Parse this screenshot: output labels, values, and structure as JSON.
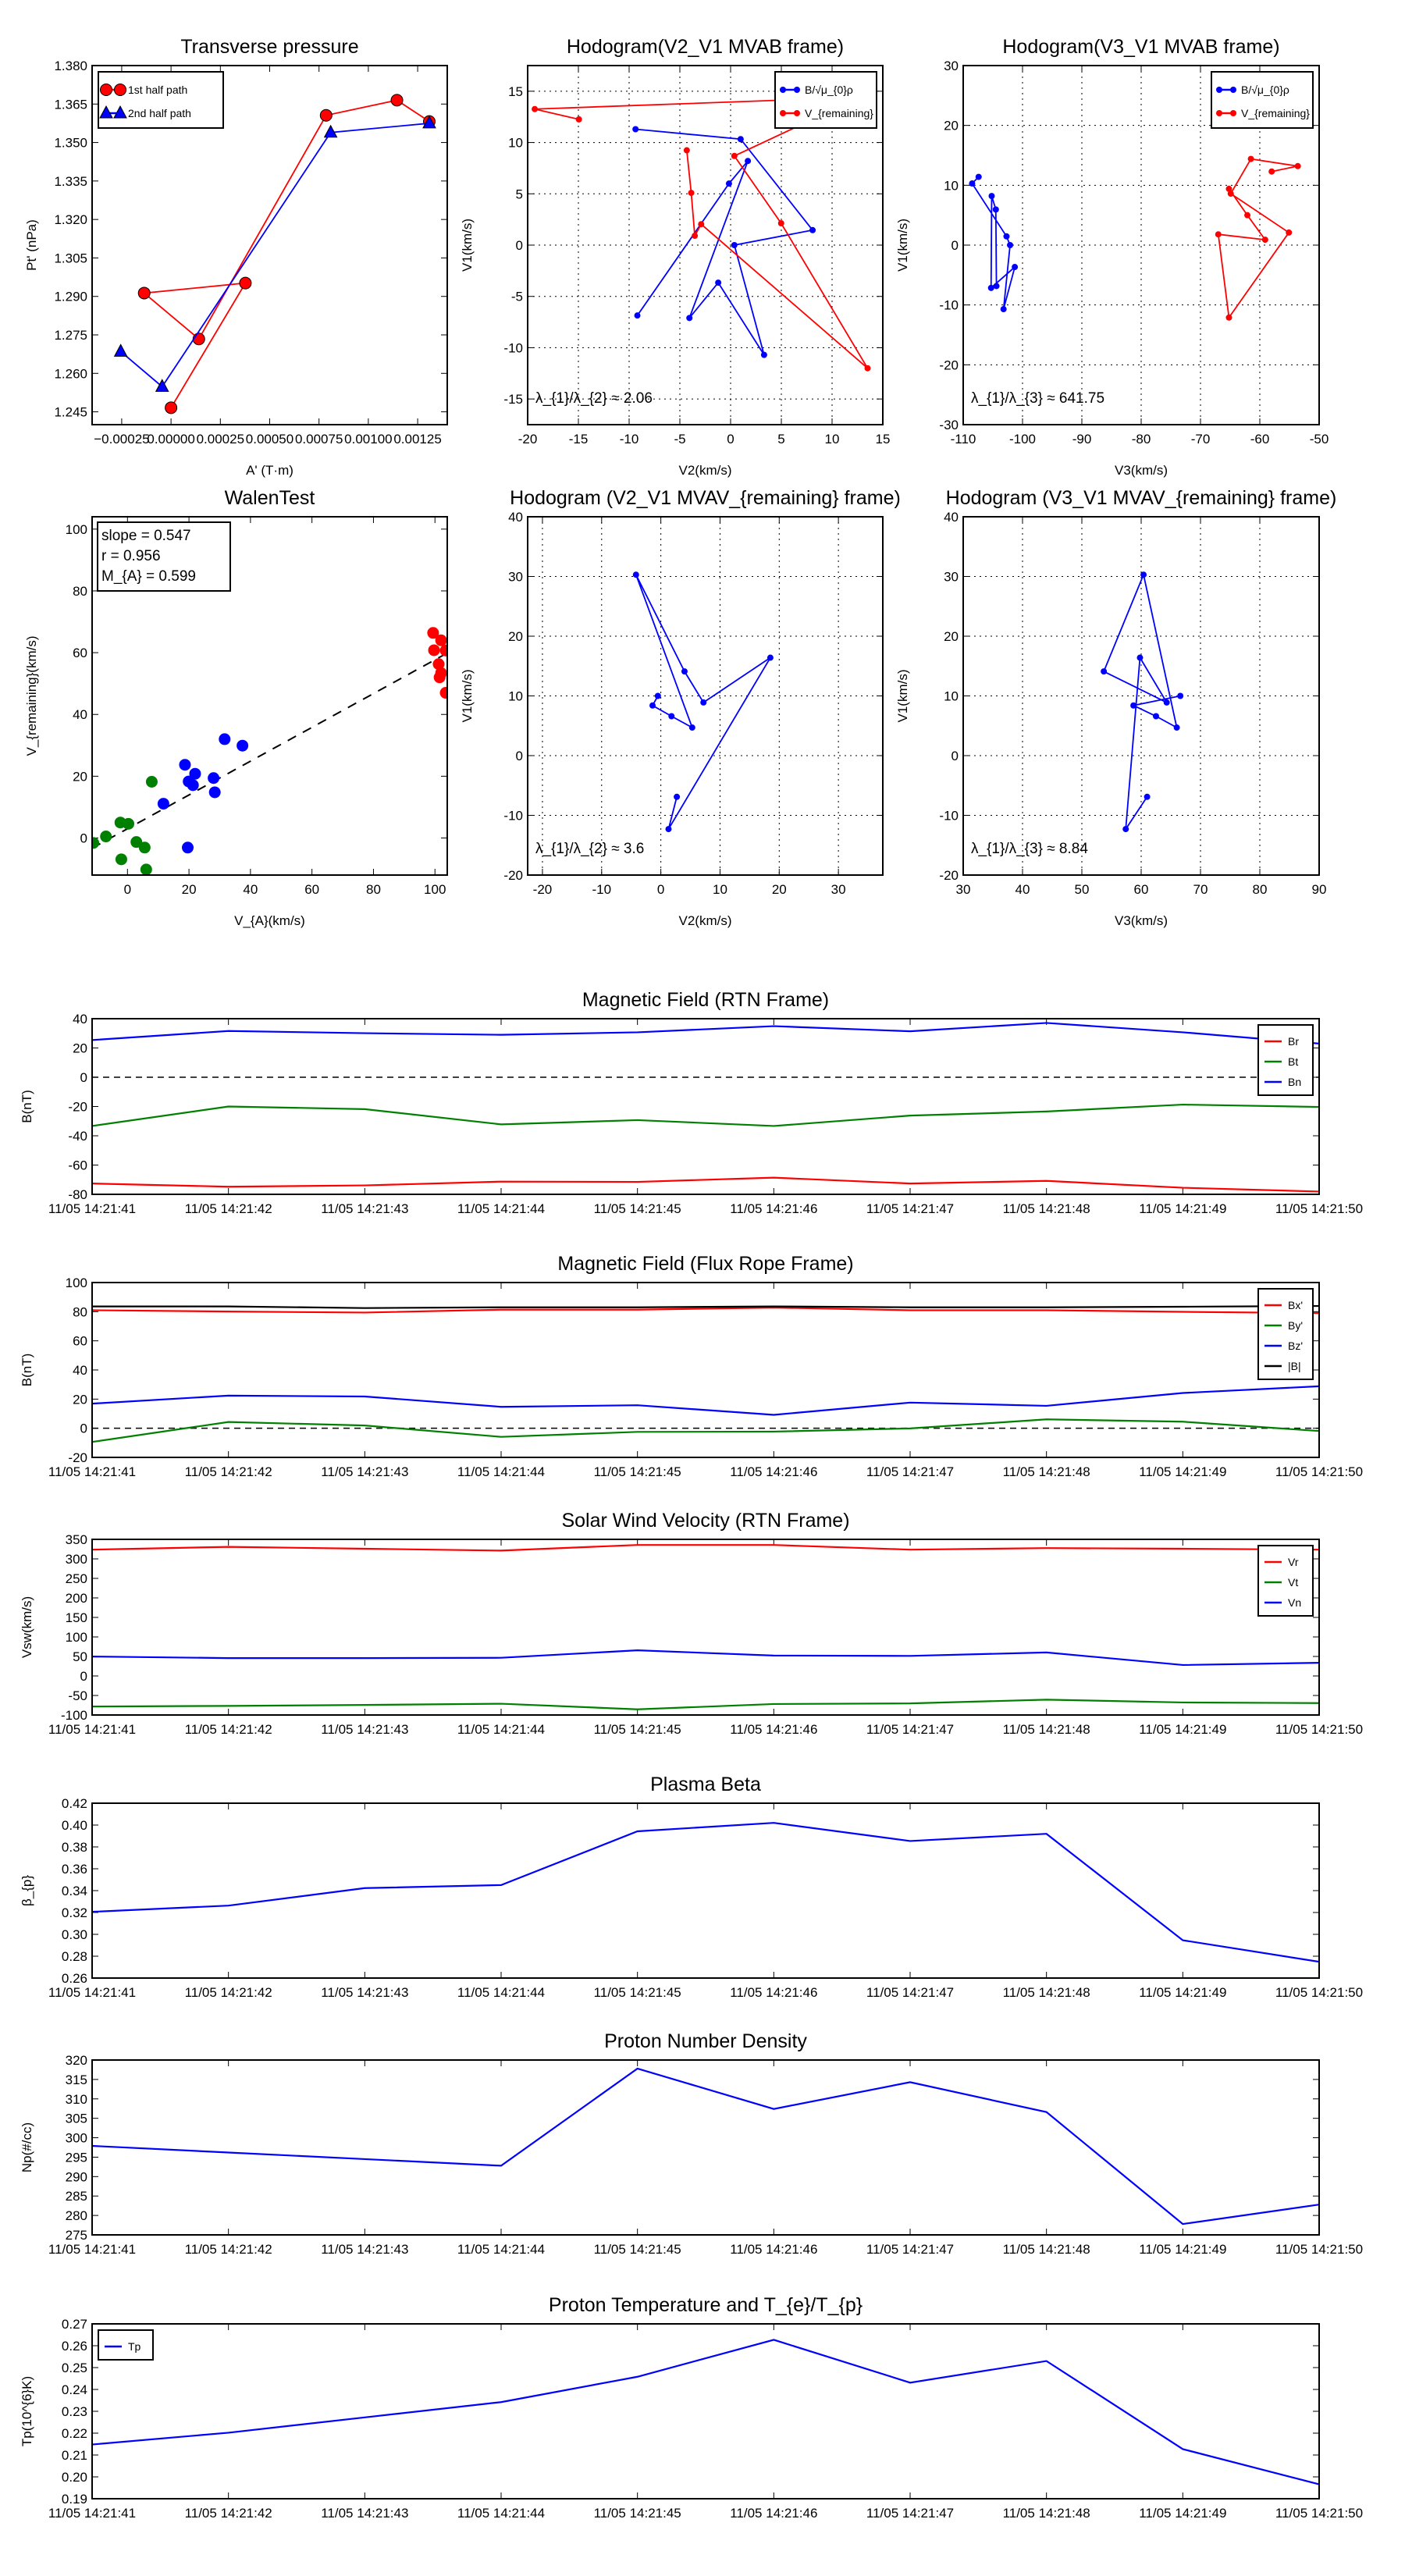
{
  "chart_data": [
    {
      "id": "transverse-pressure",
      "type": "line",
      "title": "Transverse pressure",
      "xlabel": "A' (T·m)",
      "ylabel": "Pt' (nPa)",
      "xlim": [
        -0.0004,
        0.0014
      ],
      "ylim": [
        1.24,
        1.38
      ],
      "grid": false,
      "xticks": [
        -0.00025,
        0,
        0.00025,
        0.0005,
        0.00075,
        0.001,
        0.00125
      ],
      "xticklabels": [
        "−0.00025",
        "0.00000",
        "0.00025",
        "0.00050",
        "0.00075",
        "0.00100",
        "0.00125"
      ],
      "yticks": [
        1.245,
        1.26,
        1.275,
        1.29,
        1.305,
        1.32,
        1.335,
        1.35,
        1.365,
        1.38
      ],
      "yticklabels": [
        "1.245",
        "1.260",
        "1.275",
        "1.290",
        "1.305",
        "1.320",
        "1.335",
        "1.350",
        "1.365",
        "1.380"
      ],
      "legend": "upper-left",
      "series": [
        {
          "name": "1st half path",
          "color": "#ff0000",
          "marker": "circle",
          "points": [
            [
              0,
              1.2466
            ],
            [
              0.000377,
              1.2952
            ],
            [
              -0.000136,
              1.2913
            ],
            [
              0.000141,
              1.2734
            ],
            [
              0.000786,
              1.3606
            ],
            [
              0.001145,
              1.3665
            ],
            [
              0.001309,
              1.3582
            ]
          ]
        },
        {
          "name": "2nd half path",
          "color": "#0000ff",
          "marker": "triangle",
          "points": [
            [
              -0.000255,
              1.2685
            ],
            [
              -4.5e-05,
              1.2548
            ],
            [
              0.000809,
              1.3539
            ],
            [
              0.001309,
              1.3575
            ]
          ]
        }
      ]
    },
    {
      "id": "hodogram-v2-v1-mvab",
      "type": "line",
      "title": "Hodogram(V2_V1 MVAB frame)",
      "xlabel": "V2(km/s)",
      "ylabel": "V1(km/s)",
      "xlim": [
        -20,
        15
      ],
      "ylim": [
        -17.5,
        17.5
      ],
      "grid": true,
      "xticks": [
        -20,
        -15,
        -10,
        -5,
        0,
        5,
        10,
        15
      ],
      "yticks": [
        -15,
        -10,
        -5,
        0,
        5,
        10,
        15
      ],
      "legend": "upper-right",
      "annotation": "λ_{1}/λ_{2} ≈ 2.06",
      "series": [
        {
          "name": "B/√μ_{0}ρ",
          "color": "#0000ff",
          "marker": "dot",
          "points": [
            [
              -9.19,
              -6.86
            ],
            [
              -0.16,
              6.0
            ],
            [
              1.7,
              8.2
            ],
            [
              -4.06,
              -7.1
            ],
            [
              -1.22,
              -3.66
            ],
            [
              3.3,
              -10.7
            ],
            [
              0.37,
              0
            ],
            [
              8.08,
              1.46
            ],
            [
              0.99,
              10.33
            ],
            [
              -9.37,
              11.3
            ]
          ]
        },
        {
          "name": "V_{remaining}",
          "color": "#ff0000",
          "marker": "dot",
          "points": [
            [
              -14.95,
              12.26
            ],
            [
              -19.3,
              13.26
            ],
            [
              12.7,
              14.4
            ],
            [
              0.37,
              8.69
            ],
            [
              4.98,
              2.13
            ],
            [
              13.5,
              -12.0
            ],
            [
              -2.9,
              2.04
            ],
            [
              -3.53,
              0.91
            ],
            [
              -3.88,
              5.09
            ],
            [
              -4.32,
              9.24
            ]
          ]
        }
      ]
    },
    {
      "id": "hodogram-v3-v1-mvab",
      "type": "line",
      "title": "Hodogram(V3_V1 MVAB frame)",
      "xlabel": "V3(km/s)",
      "ylabel": "V1(km/s)",
      "xlim": [
        -110,
        -50
      ],
      "ylim": [
        -30,
        30
      ],
      "grid": true,
      "xticks": [
        -110,
        -100,
        -90,
        -80,
        -70,
        -60,
        -50
      ],
      "yticks": [
        -30,
        -20,
        -10,
        0,
        10,
        20,
        30
      ],
      "legend": "upper-right",
      "annotation": "λ_{1}/λ_{3} ≈ 641.75",
      "series": [
        {
          "name": "B/√μ_{0}ρ",
          "color": "#0000ff",
          "marker": "dot",
          "points": [
            [
              -104.4,
              -6.84
            ],
            [
              -104.5,
              5.95
            ],
            [
              -105.2,
              8.2
            ],
            [
              -105.3,
              -7.15
            ],
            [
              -101.3,
              -3.66
            ],
            [
              -103.2,
              -10.7
            ],
            [
              -102.1,
              0
            ],
            [
              -102.7,
              1.46
            ],
            [
              -108.5,
              10.3
            ],
            [
              -107.4,
              11.4
            ]
          ]
        },
        {
          "name": "V_{remaining}",
          "color": "#ff0000",
          "marker": "dot",
          "points": [
            [
              -58.0,
              12.3
            ],
            [
              -53.6,
              13.2
            ],
            [
              -61.5,
              14.4
            ],
            [
              -64.9,
              8.6
            ],
            [
              -55.1,
              2.1
            ],
            [
              -65.2,
              -12.1
            ],
            [
              -67.0,
              1.8
            ],
            [
              -59.1,
              0.9
            ],
            [
              -62.1,
              5.0
            ],
            [
              -65.2,
              9.4
            ]
          ]
        }
      ]
    },
    {
      "id": "walen-test",
      "type": "scatter",
      "title": "WalenTest",
      "xlabel": "V_{A}(km/s)",
      "ylabel": "V_{remaining}(km/s)",
      "xlim": [
        -11.5,
        104
      ],
      "ylim": [
        -12,
        104
      ],
      "grid": false,
      "xticks": [
        0,
        20,
        40,
        60,
        80,
        100
      ],
      "yticks": [
        0,
        20,
        40,
        60,
        80,
        100
      ],
      "fit": {
        "slope": 0.547,
        "intercept": 3.0
      },
      "stats": [
        "slope = 0.547",
        "r = 0.956",
        "M_{A} = 0.599"
      ],
      "series": [
        {
          "name": "green",
          "color": "#008000",
          "marker": "big",
          "points": [
            [
              -7,
              0.5
            ],
            [
              -2.3,
              5.0
            ],
            [
              0.3,
              4.6
            ],
            [
              7.9,
              18.2
            ],
            [
              2.9,
              -1.3
            ],
            [
              5.6,
              -3.1
            ],
            [
              -2,
              -6.9
            ],
            [
              6.1,
              -10.2
            ],
            [
              -11.1,
              -1.6
            ]
          ]
        },
        {
          "name": "blue",
          "color": "#0000ff",
          "marker": "big",
          "points": [
            [
              18.7,
              23.7
            ],
            [
              22,
              20.8
            ],
            [
              19.9,
              18.3
            ],
            [
              21.3,
              17.1
            ],
            [
              28,
              19.4
            ],
            [
              28.4,
              14.8
            ],
            [
              11.7,
              11.1
            ],
            [
              31.6,
              32
            ],
            [
              37.4,
              29.9
            ],
            [
              19.6,
              -3.1
            ]
          ]
        },
        {
          "name": "red",
          "color": "#ff0000",
          "marker": "big",
          "points": [
            [
              99.4,
              66.4
            ],
            [
              102,
              64
            ],
            [
              99.7,
              60.8
            ],
            [
              103.5,
              60.7
            ],
            [
              101.2,
              56.3
            ],
            [
              102,
              53.4
            ],
            [
              101.5,
              52
            ],
            [
              103.5,
              47
            ]
          ]
        }
      ]
    },
    {
      "id": "hodogram-v2-v1-mvav",
      "type": "line",
      "title": "Hodogram (V2_V1 MVAV_{remaining} frame)",
      "xlabel": "V2(km/s)",
      "ylabel": "V1(km/s)",
      "xlim": [
        -22.5,
        37.5
      ],
      "ylim": [
        -20,
        40
      ],
      "grid": true,
      "xticks": [
        -20,
        -10,
        0,
        10,
        20,
        30
      ],
      "yticks": [
        -20,
        -10,
        0,
        10,
        20,
        30,
        40
      ],
      "annotation": "λ_{1}/λ_{2} ≈ 3.6",
      "series": [
        {
          "name": "B",
          "color": "#0000ff",
          "marker": "dot",
          "points": [
            [
              -0.5,
              10.0
            ],
            [
              -1.4,
              8.4
            ],
            [
              1.8,
              6.6
            ],
            [
              5.3,
              4.7
            ],
            [
              -4.2,
              30.3
            ],
            [
              4.0,
              14.1
            ],
            [
              7.2,
              8.9
            ],
            [
              18.5,
              16.4
            ],
            [
              1.3,
              -12.3
            ],
            [
              2.7,
              -6.9
            ]
          ]
        }
      ]
    },
    {
      "id": "hodogram-v3-v1-mvav",
      "type": "line",
      "title": "Hodogram (V3_V1 MVAV_{remaining} frame)",
      "xlabel": "V3(km/s)",
      "ylabel": "V1(km/s)",
      "xlim": [
        30,
        90
      ],
      "ylim": [
        -20,
        40
      ],
      "grid": true,
      "xticks": [
        30,
        40,
        50,
        60,
        70,
        80,
        90
      ],
      "yticks": [
        -20,
        -10,
        0,
        10,
        20,
        30,
        40
      ],
      "annotation": "λ_{1}/λ_{3} ≈ 8.84",
      "series": [
        {
          "name": "B",
          "color": "#0000ff",
          "marker": "dot",
          "points": [
            [
              66.6,
              10.0
            ],
            [
              58.7,
              8.4
            ],
            [
              62.5,
              6.6
            ],
            [
              66.0,
              4.7
            ],
            [
              60.4,
              30.3
            ],
            [
              53.7,
              14.1
            ],
            [
              64.3,
              8.9
            ],
            [
              59.8,
              16.4
            ],
            [
              57.4,
              -12.3
            ],
            [
              61.0,
              -6.9
            ]
          ]
        }
      ]
    },
    {
      "id": "magnetic-field-rtn",
      "type": "line",
      "timeseries": true,
      "title": "Magnetic Field (RTN Frame)",
      "xlabel": "",
      "ylabel": "B(nT)",
      "ylim": [
        -80,
        40
      ],
      "yticks": [
        -80,
        -60,
        -40,
        -20,
        0,
        20,
        40
      ],
      "zero_line": true,
      "legend": "upper-right",
      "series": [
        {
          "name": "Br",
          "color": "#ff0000",
          "values": [
            -72.6,
            -74.8,
            -73.9,
            -71.3,
            -71.5,
            -68.6,
            -72.6,
            -70.8,
            -75.5,
            -78.1
          ]
        },
        {
          "name": "Bt",
          "color": "#008000",
          "values": [
            -33.3,
            -20.0,
            -21.8,
            -32.2,
            -29.3,
            -33.3,
            -26.2,
            -23.4,
            -18.7,
            -20.3
          ]
        },
        {
          "name": "Bn",
          "color": "#0000ff",
          "values": [
            25.4,
            31.6,
            30.1,
            29.0,
            30.7,
            34.9,
            31.4,
            37.1,
            30.7,
            23.0
          ]
        }
      ]
    },
    {
      "id": "magnetic-field-flux-rope",
      "type": "line",
      "timeseries": true,
      "title": "Magnetic Field (Flux Rope Frame)",
      "xlabel": "",
      "ylabel": "B(nT)",
      "ylim": [
        -20,
        100
      ],
      "yticks": [
        -20,
        0,
        20,
        40,
        60,
        80,
        100
      ],
      "zero_line": true,
      "legend": "upper-right",
      "series": [
        {
          "name": "Bx'",
          "color": "#ff0000",
          "values": [
            81.0,
            80.1,
            79.4,
            81.4,
            81.4,
            82.8,
            81.0,
            81.0,
            79.9,
            79.0
          ]
        },
        {
          "name": "By'",
          "color": "#008000",
          "values": [
            -9.4,
            4.3,
            1.9,
            -5.9,
            -2.5,
            -2.3,
            -0.1,
            6.1,
            4.5,
            -1.9
          ]
        },
        {
          "name": "Bz'",
          "color": "#0000ff",
          "values": [
            16.9,
            22.4,
            21.8,
            14.7,
            15.8,
            9.2,
            17.6,
            15.4,
            24.2,
            28.8
          ]
        },
        {
          "name": "|B|",
          "color": "#000000",
          "values": [
            83.6,
            83.6,
            82.5,
            83.0,
            83.0,
            83.6,
            83.0,
            83.0,
            83.4,
            83.9
          ]
        }
      ]
    },
    {
      "id": "solar-wind-velocity",
      "type": "line",
      "timeseries": true,
      "title": "Solar Wind Velocity (RTN Frame)",
      "xlabel": "",
      "ylabel": "Vsw(km/s)",
      "ylim": [
        -100,
        350
      ],
      "yticks": [
        -100,
        -50,
        0,
        50,
        100,
        150,
        200,
        250,
        300,
        350
      ],
      "legend": "upper-right",
      "series": [
        {
          "name": "Vr",
          "color": "#ff0000",
          "values": [
            323.6,
            330.8,
            326,
            321.2,
            335.6,
            335.6,
            323.6,
            327.6,
            326,
            323.6
          ]
        },
        {
          "name": "Vt",
          "color": "#008000",
          "values": [
            -78.3,
            -76.7,
            -74.3,
            -71.1,
            -85.5,
            -71.9,
            -70.3,
            -60.7,
            -67.9,
            -69.5
          ]
        },
        {
          "name": "Vn",
          "color": "#0000ff",
          "values": [
            49.8,
            45.8,
            45.8,
            46.6,
            65.8,
            52.2,
            51.4,
            60.2,
            28.1,
            33.7
          ]
        }
      ]
    },
    {
      "id": "plasma-beta",
      "type": "line",
      "timeseries": true,
      "title": "Plasma Beta",
      "xlabel": "",
      "ylabel": "β_{p}",
      "ylim": [
        0.26,
        0.42
      ],
      "yticks": [
        0.26,
        0.28,
        0.3,
        0.32,
        0.34,
        0.36,
        0.38,
        0.4,
        0.42
      ],
      "yticklabels": [
        "0.26",
        "0.28",
        "0.30",
        "0.32",
        "0.34",
        "0.36",
        "0.38",
        "0.40",
        "0.42"
      ],
      "series": [
        {
          "name": "beta",
          "color": "#0000ff",
          "values": [
            0.3206,
            0.3263,
            0.3423,
            0.3451,
            0.3943,
            0.402,
            0.3854,
            0.392,
            0.2946,
            0.2749
          ]
        }
      ]
    },
    {
      "id": "proton-number-density",
      "type": "line",
      "timeseries": true,
      "title": "Proton Number Density",
      "xlabel": "",
      "ylabel": "Np(#/cc)",
      "ylim": [
        275,
        320
      ],
      "yticks": [
        275,
        280,
        285,
        290,
        295,
        300,
        305,
        310,
        315,
        320
      ],
      "series": [
        {
          "name": "Np",
          "color": "#0000ff",
          "values": [
            297.9,
            296.2,
            294.5,
            292.8,
            317.8,
            307.4,
            314.3,
            306.6,
            277.8,
            282.8
          ]
        }
      ]
    },
    {
      "id": "proton-temperature",
      "type": "line",
      "timeseries": true,
      "title": "Proton Temperature and T_{e}/T_{p}",
      "xlabel": "",
      "ylabel": "Tp(10^{6}K)",
      "ylim": [
        0.19,
        0.27
      ],
      "yticks": [
        0.19,
        0.2,
        0.21,
        0.22,
        0.23,
        0.24,
        0.25,
        0.26,
        0.27
      ],
      "yticklabels": [
        "0.19",
        "0.20",
        "0.21",
        "0.22",
        "0.23",
        "0.24",
        "0.25",
        "0.26",
        "0.27"
      ],
      "legend": "upper-left",
      "series": [
        {
          "name": "Tp",
          "color": "#0000ff",
          "values": [
            0.2148,
            0.2202,
            0.2272,
            0.2342,
            0.2458,
            0.2627,
            0.2431,
            0.253,
            0.2127,
            0.1966
          ]
        }
      ]
    }
  ],
  "time_labels": [
    "11/05 14:21:41",
    "11/05 14:21:42",
    "11/05 14:21:43",
    "11/05 14:21:44",
    "11/05 14:21:45",
    "11/05 14:21:46",
    "11/05 14:21:47",
    "11/05 14:21:48",
    "11/05 14:21:49",
    "11/05 14:21:50"
  ]
}
